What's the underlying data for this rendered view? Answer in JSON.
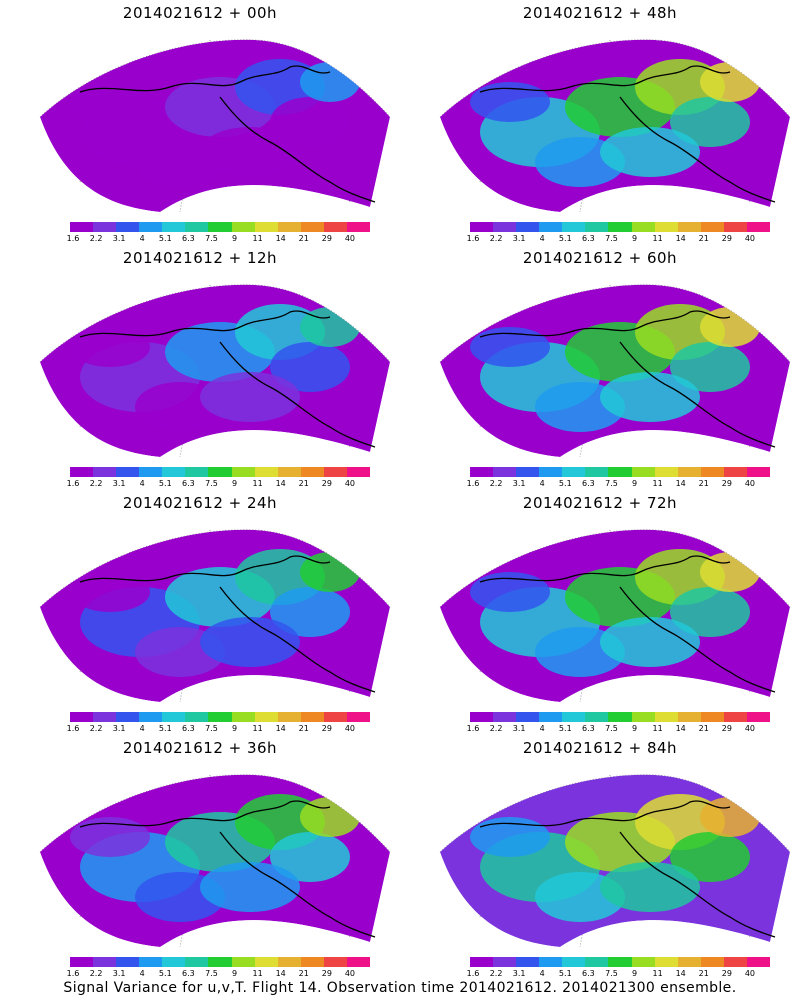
{
  "panels": [
    {
      "id": "p0",
      "title": "2014021612 + 00h"
    },
    {
      "id": "p48",
      "title": "2014021612 + 48h"
    },
    {
      "id": "p12",
      "title": "2014021612 + 12h"
    },
    {
      "id": "p60",
      "title": "2014021612 + 60h"
    },
    {
      "id": "p24",
      "title": "2014021612 + 24h"
    },
    {
      "id": "p72",
      "title": "2014021612 + 72h"
    },
    {
      "id": "p36",
      "title": "2014021612 + 36h"
    },
    {
      "id": "p84",
      "title": "2014021612 + 84h"
    }
  ],
  "colorbar": {
    "colors": [
      "#9900cc",
      "#7a33dd",
      "#3355ee",
      "#1e9bf0",
      "#22c8d8",
      "#1fc8a0",
      "#22cc33",
      "#99dd22",
      "#dddd33",
      "#e6b030",
      "#ee8822",
      "#ee4444",
      "#ee1188"
    ],
    "labels": [
      "1.6",
      "2.2",
      "3.1",
      "4",
      "5.1",
      "6.3",
      "7.5",
      "9",
      "11",
      "14",
      "21",
      "29",
      "40"
    ]
  },
  "footer": "Signal Variance for u,v,T. Flight 14. Observation time 2014021612. 2014021300 ensemble."
}
